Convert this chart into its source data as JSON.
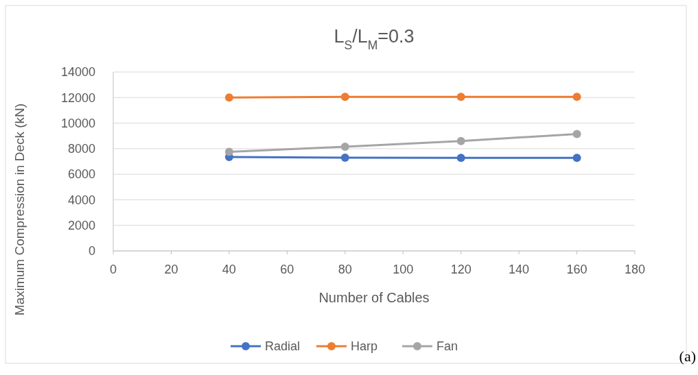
{
  "chart_data": {
    "type": "line",
    "title": "L$_{S}$/L$_{M}$=0.3",
    "xlabel": "Number of Cables",
    "ylabel": "Maximum Compression in Deck (kN)",
    "x": [
      40,
      80,
      120,
      160
    ],
    "series": [
      {
        "name": "Radial",
        "color": "#4472c4",
        "values": [
          7350,
          7300,
          7280,
          7280
        ]
      },
      {
        "name": "Harp",
        "color": "#ed7d31",
        "values": [
          12000,
          12050,
          12060,
          12060
        ]
      },
      {
        "name": "Fan",
        "color": "#a5a5a5",
        "values": [
          7750,
          8150,
          8600,
          9150
        ]
      }
    ],
    "xlim": [
      0,
      180
    ],
    "xticks": [
      0,
      20,
      40,
      60,
      80,
      100,
      120,
      140,
      160,
      180
    ],
    "ylim": [
      0,
      14000
    ],
    "yticks": [
      0,
      2000,
      4000,
      6000,
      8000,
      10000,
      12000,
      14000
    ],
    "grid": "y",
    "legend": "bottom",
    "marker": "circle",
    "line_style": "solid",
    "annotations": [
      "(a)"
    ]
  }
}
